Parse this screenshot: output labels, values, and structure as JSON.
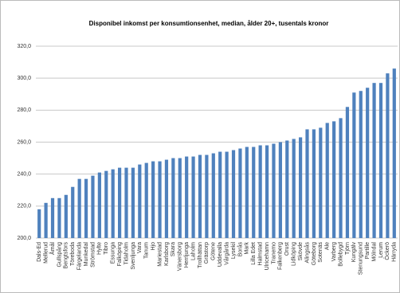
{
  "chart_data": {
    "type": "bar",
    "title": "Disponibel inkomst per konsumtionsenhet, median, ålder 20+, tusentals kronor",
    "categories": [
      "Dals-Ed",
      "Mellerud",
      "Åmål",
      "Gullspång",
      "Bengtsfors",
      "Töreboda",
      "Färgelanda",
      "Munkedal",
      "Strömstad",
      "Hylte",
      "Tibro",
      "Essunga",
      "Falköping",
      "Tidaholm",
      "Svenljunga",
      "Vara",
      "Tanum",
      "Hjo",
      "Mariestad",
      "Karlsborg",
      "Skara",
      "Vänersborg",
      "Herrljunga",
      "Laholm",
      "Trollhättan",
      "Grästorp",
      "Götene",
      "Uddevalla",
      "Vårgårda",
      "Lysekil",
      "Borås",
      "Mark",
      "Lilla Edet",
      "Halmstad",
      "Ulricehamn",
      "Tranemo",
      "Falkenberg",
      "Orust",
      "Lidköping",
      "Skövde",
      "Alingsås",
      "Göteborg",
      "Sotenäs",
      "Ale",
      "Varberg",
      "Bollebygd",
      "Tjörn",
      "Kungälv",
      "Stenungsund",
      "Partille",
      "Mölndal",
      "Lerum",
      "Öckerö",
      "Härryda"
    ],
    "values": [
      218,
      222,
      225,
      225,
      227,
      232,
      237,
      237,
      239,
      241,
      242,
      243,
      244,
      244,
      244,
      246,
      247,
      248,
      248,
      249,
      250,
      250,
      251,
      251,
      252,
      252,
      253,
      254,
      254,
      255,
      256,
      257,
      257,
      258,
      258,
      259,
      260,
      261,
      262,
      263,
      268,
      268,
      269,
      272,
      273,
      275,
      282,
      291,
      292,
      294,
      297,
      297,
      303,
      306
    ],
    "color": "#4f81bd",
    "ylim": [
      200,
      320
    ],
    "yticks": [
      {
        "value": 200,
        "label": "200,0"
      },
      {
        "value": 220,
        "label": "220,0"
      },
      {
        "value": 240,
        "label": "240,0"
      },
      {
        "value": 260,
        "label": "260,0"
      },
      {
        "value": 280,
        "label": "280,0"
      },
      {
        "value": 300,
        "label": "300,0"
      },
      {
        "value": 320,
        "label": "320,0"
      }
    ],
    "grid": true
  }
}
